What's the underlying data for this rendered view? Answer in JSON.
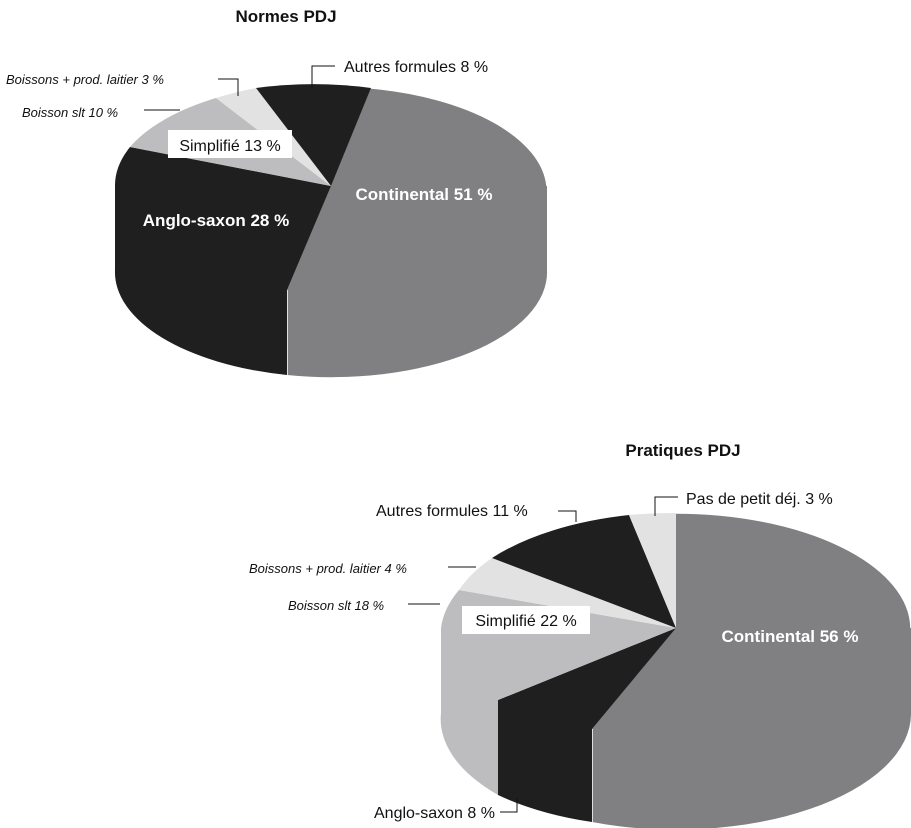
{
  "colors": {
    "dark": "#1f1f1f",
    "mid": "#808083",
    "light": "#bdbdbf",
    "lighter": "#e2e2e3",
    "text": "#111111",
    "background": "#ffffff"
  },
  "chart_data": [
    {
      "type": "pie",
      "title": "Normes PDJ",
      "style": "3d",
      "slices": [
        {
          "label": "Continental 51 %",
          "value": 51,
          "color": "#808083"
        },
        {
          "label": "Anglo-saxon 28 %",
          "value": 28,
          "color": "#1f1f1f"
        },
        {
          "label": "Simplifié 13 %",
          "value": 13,
          "color": "#bdbdbf"
        },
        {
          "label": "Boisson slt 10 %",
          "value": 10,
          "color": "#bdbdbf"
        },
        {
          "label": "Boissons + prod. laitier 3 %",
          "value": 3,
          "color": "#e2e2e3"
        },
        {
          "label": "Autres formules 8 %",
          "value": 8,
          "color": "#1f1f1f"
        }
      ]
    },
    {
      "type": "pie",
      "title": "Pratiques PDJ",
      "style": "3d",
      "slices": [
        {
          "label": "Continental 56 %",
          "value": 56,
          "color": "#808083"
        },
        {
          "label": "Anglo-saxon 8 %",
          "value": 8,
          "color": "#1f1f1f"
        },
        {
          "label": "Simplifié 22 %",
          "value": 22,
          "color": "#bdbdbf"
        },
        {
          "label": "Boisson slt 18 %",
          "value": 18,
          "color": "#bdbdbf"
        },
        {
          "label": "Boissons + prod. laitier 4 %",
          "value": 4,
          "color": "#e2e2e3"
        },
        {
          "label": "Autres formules 11 %",
          "value": 11,
          "color": "#1f1f1f"
        },
        {
          "label": "Pas de petit déj. 3 %",
          "value": 3,
          "color": "#e2e2e3"
        }
      ]
    }
  ]
}
